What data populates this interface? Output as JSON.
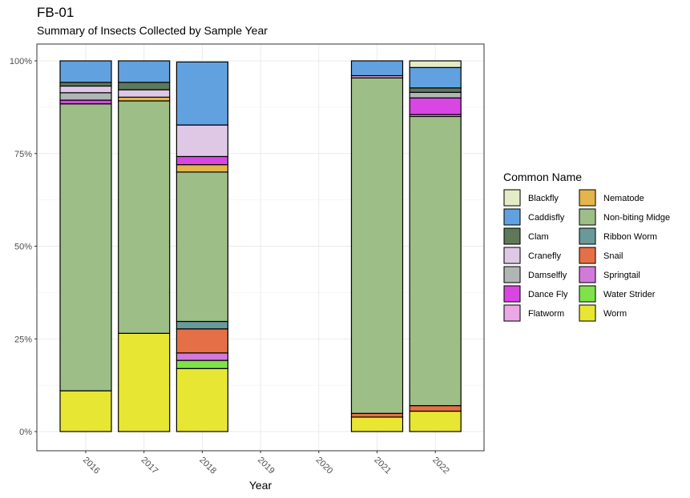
{
  "chart_data": {
    "type": "bar",
    "stacked": true,
    "title": "FB-01",
    "subtitle": "Summary of Insects Collected by Sample Year",
    "xlabel": "Year",
    "ylabel": "",
    "ylim": [
      0,
      1
    ],
    "y_ticks": [
      "0%",
      "25%",
      "50%",
      "75%",
      "100%"
    ],
    "categories": [
      "2016",
      "2017",
      "2018",
      "2019",
      "2020",
      "2021",
      "2022"
    ],
    "legend_title": "Common Name",
    "legend_position": "right",
    "series": [
      {
        "name": "Blackfly",
        "color": "#e3ecc4",
        "values": [
          0,
          0,
          0,
          0,
          0,
          0,
          0.018
        ]
      },
      {
        "name": "Caddisfly",
        "color": "#62a1df",
        "values": [
          0.058,
          0.058,
          0.17,
          0,
          0,
          0.04,
          0.055
        ]
      },
      {
        "name": "Clam",
        "color": "#5e785a",
        "values": [
          0.01,
          0.02,
          0,
          0,
          0,
          0,
          0.012
        ]
      },
      {
        "name": "Cranefly",
        "color": "#dfc7e6",
        "values": [
          0.018,
          0.02,
          0.085,
          0,
          0,
          0,
          0
        ]
      },
      {
        "name": "Damselfly",
        "color": "#b0b6b6",
        "values": [
          0.02,
          0,
          0,
          0,
          0,
          0,
          0.015
        ]
      },
      {
        "name": "Dance Fly",
        "color": "#d846e3",
        "values": [
          0.01,
          0,
          0.022,
          0,
          0,
          0,
          0.045
        ]
      },
      {
        "name": "Flatworm",
        "color": "#eba7e6",
        "values": [
          0,
          0,
          0,
          0,
          0,
          0.006,
          0.005
        ]
      },
      {
        "name": "Nematode",
        "color": "#e4b54a",
        "values": [
          0,
          0.01,
          0.02,
          0,
          0,
          0,
          0
        ]
      },
      {
        "name": "Non-biting Midge",
        "color": "#9dbf87",
        "values": [
          0.774,
          0.627,
          0.403,
          0,
          0,
          0.905,
          0.78
        ]
      },
      {
        "name": "Ribbon Worm",
        "color": "#6a9999",
        "values": [
          0,
          0,
          0.02,
          0,
          0,
          0,
          0
        ]
      },
      {
        "name": "Snail",
        "color": "#e56f46",
        "values": [
          0,
          0,
          0.065,
          0,
          0,
          0.01,
          0.015
        ]
      },
      {
        "name": "Springtail",
        "color": "#d27ad9",
        "values": [
          0,
          0,
          0.02,
          0,
          0,
          0,
          0
        ]
      },
      {
        "name": "Water Strider",
        "color": "#7fe24a",
        "values": [
          0,
          0,
          0.022,
          0,
          0,
          0,
          0
        ]
      },
      {
        "name": "Worm",
        "color": "#e7e633",
        "values": [
          0.11,
          0.265,
          0.17,
          0,
          0,
          0.039,
          0.055
        ]
      }
    ]
  }
}
